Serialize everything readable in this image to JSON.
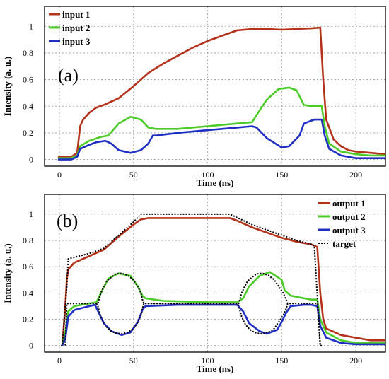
{
  "chart_data": [
    {
      "type": "line",
      "panel_label": "(a)",
      "xlabel": "Time (ns)",
      "ylabel": "Intensity (a. u.)",
      "xlim": [
        -10,
        220
      ],
      "ylim": [
        -0.05,
        1.15
      ],
      "xticks": [
        0,
        50,
        100,
        150,
        200
      ],
      "yticks": [
        0,
        0.2,
        0.4,
        0.6,
        0.8,
        1
      ],
      "grid": true,
      "legend_position": "top-left",
      "series": [
        {
          "name": "input 1",
          "color": "#b5321a",
          "x": [
            -1,
            8,
            12,
            14,
            16,
            20,
            25,
            30,
            40,
            50,
            60,
            70,
            80,
            90,
            100,
            110,
            120,
            130,
            140,
            150,
            160,
            170,
            176,
            178,
            180,
            185,
            190,
            195,
            200,
            210,
            220
          ],
          "y": [
            0.02,
            0.02,
            0.05,
            0.25,
            0.3,
            0.35,
            0.39,
            0.41,
            0.46,
            0.55,
            0.65,
            0.72,
            0.78,
            0.84,
            0.89,
            0.93,
            0.97,
            0.98,
            0.98,
            0.975,
            0.98,
            0.985,
            0.99,
            0.6,
            0.3,
            0.15,
            0.1,
            0.07,
            0.06,
            0.05,
            0.04
          ]
        },
        {
          "name": "input 2",
          "color": "#4ccc28",
          "x": [
            -1,
            8,
            12,
            14,
            20,
            28,
            33,
            40,
            48,
            55,
            60,
            65,
            80,
            100,
            120,
            130,
            134,
            140,
            148,
            155,
            160,
            165,
            170,
            177,
            179,
            182,
            190,
            200,
            210,
            220
          ],
          "y": [
            0.01,
            0.01,
            0.03,
            0.1,
            0.14,
            0.17,
            0.18,
            0.27,
            0.32,
            0.3,
            0.24,
            0.23,
            0.23,
            0.25,
            0.27,
            0.28,
            0.35,
            0.45,
            0.53,
            0.54,
            0.52,
            0.41,
            0.4,
            0.4,
            0.25,
            0.12,
            0.06,
            0.04,
            0.03,
            0.03
          ]
        },
        {
          "name": "input 3",
          "color": "#1f2fc4",
          "x": [
            -1,
            8,
            12,
            14,
            20,
            25,
            31,
            35,
            40,
            48,
            55,
            60,
            63,
            65,
            80,
            100,
            120,
            130,
            133,
            140,
            150,
            155,
            162,
            165,
            172,
            177,
            179,
            182,
            190,
            200,
            210,
            220
          ],
          "y": [
            0.0,
            0.0,
            0.02,
            0.08,
            0.11,
            0.13,
            0.14,
            0.12,
            0.07,
            0.05,
            0.07,
            0.12,
            0.18,
            0.18,
            0.2,
            0.22,
            0.24,
            0.25,
            0.24,
            0.16,
            0.09,
            0.1,
            0.18,
            0.27,
            0.3,
            0.3,
            0.18,
            0.08,
            0.03,
            0.01,
            0.01,
            0.01
          ]
        }
      ]
    },
    {
      "type": "line",
      "panel_label": "(b)",
      "xlabel": "Time (ns)",
      "ylabel": "Intensity (a. u.)",
      "xlim": [
        -10,
        220
      ],
      "ylim": [
        -0.05,
        1.15
      ],
      "xticks": [
        0,
        50,
        100,
        150,
        200
      ],
      "yticks": [
        0,
        0.2,
        0.4,
        0.6,
        0.8,
        1
      ],
      "grid": true,
      "legend_position": "top-right",
      "series": [
        {
          "name": "output 1",
          "color": "#b5321a",
          "x": [
            2,
            4,
            5,
            6,
            10,
            20,
            30,
            40,
            50,
            55,
            60,
            80,
            100,
            115,
            120,
            130,
            140,
            150,
            160,
            170,
            174,
            176,
            178,
            180,
            190,
            200,
            210,
            220
          ],
          "y": [
            0.0,
            0.3,
            0.5,
            0.58,
            0.63,
            0.68,
            0.73,
            0.83,
            0.92,
            0.96,
            0.97,
            0.97,
            0.97,
            0.97,
            0.95,
            0.9,
            0.86,
            0.82,
            0.79,
            0.77,
            0.75,
            0.4,
            0.2,
            0.13,
            0.08,
            0.06,
            0.04,
            0.04
          ]
        },
        {
          "name": "output 2",
          "color": "#4ccc28",
          "x": [
            2,
            4,
            6,
            10,
            20,
            25,
            28,
            33,
            40,
            48,
            53,
            56,
            58,
            70,
            100,
            120,
            124,
            128,
            135,
            142,
            150,
            152,
            156,
            165,
            170,
            174,
            176,
            180,
            190,
            200,
            220
          ],
          "y": [
            0.0,
            0.1,
            0.26,
            0.3,
            0.32,
            0.33,
            0.4,
            0.51,
            0.55,
            0.53,
            0.45,
            0.38,
            0.36,
            0.34,
            0.33,
            0.33,
            0.36,
            0.45,
            0.53,
            0.56,
            0.5,
            0.42,
            0.38,
            0.36,
            0.35,
            0.35,
            0.2,
            0.1,
            0.04,
            0.02,
            0.02
          ]
        },
        {
          "name": "output 3",
          "color": "#1f2fc4",
          "x": [
            2,
            4,
            6,
            10,
            20,
            24,
            27,
            30,
            35,
            42,
            48,
            53,
            56,
            58,
            80,
            100,
            120,
            124,
            128,
            135,
            140,
            147,
            150,
            153,
            156,
            165,
            170,
            174,
            176,
            180,
            190,
            200,
            220
          ],
          "y": [
            0.0,
            0.05,
            0.22,
            0.27,
            0.3,
            0.31,
            0.24,
            0.17,
            0.11,
            0.08,
            0.1,
            0.18,
            0.27,
            0.3,
            0.31,
            0.31,
            0.31,
            0.26,
            0.17,
            0.11,
            0.09,
            0.12,
            0.18,
            0.25,
            0.3,
            0.31,
            0.31,
            0.3,
            0.15,
            0.06,
            0.02,
            0.01,
            0.01
          ]
        },
        {
          "name": "target",
          "color": "#000000",
          "dashed": true,
          "x": [
            1,
            2,
            5,
            6,
            20,
            30,
            40,
            50,
            55,
            90,
            100,
            110,
            115,
            130,
            150,
            160,
            170,
            172,
            176,
            178
          ],
          "y": [
            0.0,
            0.0,
            0.45,
            0.66,
            0.7,
            0.74,
            0.84,
            0.94,
            1.0,
            1.0,
            1.0,
            1.0,
            1.0,
            0.92,
            0.84,
            0.8,
            0.77,
            0.76,
            0.0,
            0.0
          ]
        },
        {
          "name": "",
          "color": "#000000",
          "dashed": true,
          "x": [
            4,
            5,
            25,
            26,
            28,
            30,
            32,
            35,
            38,
            42,
            46,
            50,
            53,
            55,
            56,
            57,
            120,
            121,
            123,
            125,
            127,
            130,
            133,
            137,
            141,
            145,
            148,
            151,
            153,
            154,
            155,
            172,
            174,
            176
          ],
          "y": [
            0.0,
            0.32,
            0.32,
            0.32,
            0.4,
            0.45,
            0.49,
            0.52,
            0.545,
            0.55,
            0.535,
            0.5,
            0.45,
            0.4,
            0.35,
            0.32,
            0.32,
            0.32,
            0.4,
            0.45,
            0.49,
            0.52,
            0.545,
            0.55,
            0.535,
            0.5,
            0.45,
            0.4,
            0.35,
            0.32,
            0.32,
            0.32,
            0.32,
            0.0
          ]
        },
        {
          "name": "",
          "color": "#000000",
          "dashed": true,
          "x": [
            25,
            26,
            28,
            30,
            32,
            35,
            38,
            42,
            46,
            50,
            53,
            55,
            56,
            57,
            120,
            121,
            123,
            125,
            127,
            130,
            133,
            137,
            141,
            145,
            148,
            151,
            153,
            154,
            155
          ],
          "y": [
            0.32,
            0.3,
            0.22,
            0.17,
            0.14,
            0.11,
            0.095,
            0.09,
            0.1,
            0.13,
            0.18,
            0.23,
            0.28,
            0.32,
            0.32,
            0.3,
            0.22,
            0.17,
            0.14,
            0.11,
            0.095,
            0.09,
            0.1,
            0.13,
            0.18,
            0.23,
            0.28,
            0.32,
            0.32
          ]
        }
      ]
    }
  ]
}
